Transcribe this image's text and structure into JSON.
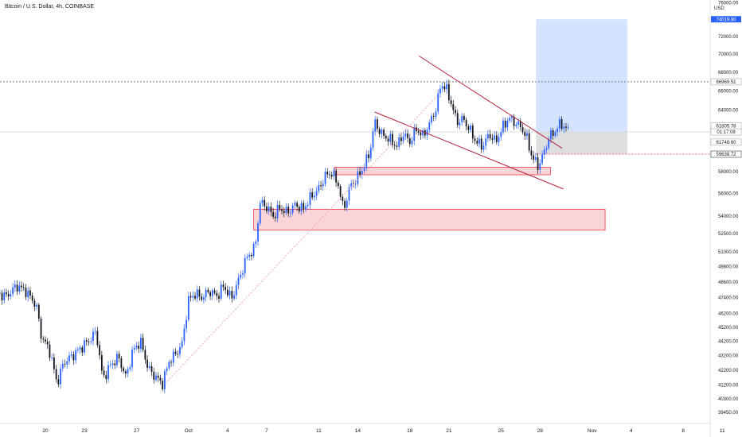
{
  "chart_title": "Bitcoin / U.S. Dollar, 4h, COINBASE",
  "axis_currency": "USD",
  "chart_data": {
    "type": "candlestick",
    "title": "Bitcoin / U.S. Dollar, 4h, COINBASE",
    "ylabel": "USD",
    "scale": "log",
    "ylim": [
      39200,
      76000
    ],
    "y_ticks": [
      {
        "value": 76000,
        "label": "76000.00"
      },
      {
        "value": 72000,
        "label": "72000.00"
      },
      {
        "value": 70000,
        "label": "70000.00"
      },
      {
        "value": 68000,
        "label": "68000.00"
      },
      {
        "value": 66000,
        "label": "66000.00"
      },
      {
        "value": 64000,
        "label": "64000.00"
      },
      {
        "value": 58000,
        "label": "58000.00"
      },
      {
        "value": 56000,
        "label": "56000.00"
      },
      {
        "value": 54000,
        "label": "54000.00"
      },
      {
        "value": 52500,
        "label": "52500.00"
      },
      {
        "value": 51000,
        "label": "51000.00"
      },
      {
        "value": 49800,
        "label": "49800.00"
      },
      {
        "value": 48600,
        "label": "48600.00"
      },
      {
        "value": 47400,
        "label": "47400.00"
      },
      {
        "value": 46200,
        "label": "46200.00"
      },
      {
        "value": 45200,
        "label": "45200.00"
      },
      {
        "value": 44200,
        "label": "44200.00"
      },
      {
        "value": 43200,
        "label": "43200.00"
      },
      {
        "value": 42200,
        "label": "42200.00"
      },
      {
        "value": 41200,
        "label": "41200.00"
      },
      {
        "value": 40300,
        "label": "40300.00"
      },
      {
        "value": 39450,
        "label": "39450.00"
      }
    ],
    "x_ticks": [
      {
        "day": 20,
        "label": "20"
      },
      {
        "day": 23,
        "label": "23"
      },
      {
        "day": 27,
        "label": "27"
      },
      {
        "day": 31,
        "label": "Oct"
      },
      {
        "day": 34,
        "label": "4"
      },
      {
        "day": 37,
        "label": "7"
      },
      {
        "day": 41,
        "label": "11"
      },
      {
        "day": 44,
        "label": "14"
      },
      {
        "day": 48,
        "label": "18"
      },
      {
        "day": 51,
        "label": "21"
      },
      {
        "day": 55,
        "label": "25"
      },
      {
        "day": 58,
        "label": "28"
      },
      {
        "day": 62,
        "label": "Nov"
      },
      {
        "day": 65,
        "label": "4"
      },
      {
        "day": 69,
        "label": "8"
      },
      {
        "day": 72,
        "label": "11"
      }
    ],
    "colors": {
      "up": "#2962ff",
      "down": "#131722"
    },
    "anchors": [
      {
        "day": 16,
        "close": 47800
      },
      {
        "day": 17,
        "close": 47500
      },
      {
        "day": 17.8,
        "close": 48300
      },
      {
        "day": 18.5,
        "close": 47900
      },
      {
        "day": 19.3,
        "close": 46800
      },
      {
        "day": 19.7,
        "close": 44500
      },
      {
        "day": 20.3,
        "close": 43600
      },
      {
        "day": 20.9,
        "close": 41300
      },
      {
        "day": 21.4,
        "close": 42700
      },
      {
        "day": 22.1,
        "close": 43200
      },
      {
        "day": 22.7,
        "close": 43700
      },
      {
        "day": 23.4,
        "close": 44300
      },
      {
        "day": 23.9,
        "close": 44900
      },
      {
        "day": 24.4,
        "close": 41600
      },
      {
        "day": 25.0,
        "close": 42500
      },
      {
        "day": 25.6,
        "close": 43100
      },
      {
        "day": 26.2,
        "close": 41700
      },
      {
        "day": 26.7,
        "close": 43500
      },
      {
        "day": 27.3,
        "close": 44200
      },
      {
        "day": 27.9,
        "close": 42300
      },
      {
        "day": 28.5,
        "close": 41700
      },
      {
        "day": 29.0,
        "close": 41300
      },
      {
        "day": 29.5,
        "close": 42800
      },
      {
        "day": 30.0,
        "close": 43300
      },
      {
        "day": 30.5,
        "close": 44000
      },
      {
        "day": 31.0,
        "close": 47200
      },
      {
        "day": 31.5,
        "close": 47700
      },
      {
        "day": 32.0,
        "close": 47400
      },
      {
        "day": 32.6,
        "close": 47900
      },
      {
        "day": 33.2,
        "close": 47500
      },
      {
        "day": 33.7,
        "close": 48300
      },
      {
        "day": 34.3,
        "close": 47300
      },
      {
        "day": 34.9,
        "close": 48900
      },
      {
        "day": 35.5,
        "close": 50600
      },
      {
        "day": 36.1,
        "close": 51300
      },
      {
        "day": 36.5,
        "close": 55200
      },
      {
        "day": 37.0,
        "close": 54800
      },
      {
        "day": 37.5,
        "close": 54000
      },
      {
        "day": 38.0,
        "close": 54700
      },
      {
        "day": 38.6,
        "close": 54300
      },
      {
        "day": 39.2,
        "close": 55000
      },
      {
        "day": 39.8,
        "close": 54600
      },
      {
        "day": 40.4,
        "close": 55700
      },
      {
        "day": 41.0,
        "close": 56400
      },
      {
        "day": 41.5,
        "close": 57600
      },
      {
        "day": 42.0,
        "close": 57900
      },
      {
        "day": 42.5,
        "close": 56800
      },
      {
        "day": 42.9,
        "close": 54500
      },
      {
        "day": 43.4,
        "close": 56600
      },
      {
        "day": 43.9,
        "close": 57300
      },
      {
        "day": 44.4,
        "close": 58300
      },
      {
        "day": 44.9,
        "close": 59700
      },
      {
        "day": 45.3,
        "close": 62800
      },
      {
        "day": 45.8,
        "close": 61600
      },
      {
        "day": 46.4,
        "close": 61100
      },
      {
        "day": 47.0,
        "close": 60400
      },
      {
        "day": 47.5,
        "close": 61600
      },
      {
        "day": 48.0,
        "close": 60800
      },
      {
        "day": 48.5,
        "close": 62100
      },
      {
        "day": 49.0,
        "close": 61400
      },
      {
        "day": 49.5,
        "close": 62600
      },
      {
        "day": 50.0,
        "close": 64100
      },
      {
        "day": 50.4,
        "close": 66800
      },
      {
        "day": 50.8,
        "close": 66200
      },
      {
        "day": 51.2,
        "close": 64600
      },
      {
        "day": 51.6,
        "close": 62800
      },
      {
        "day": 52.1,
        "close": 63100
      },
      {
        "day": 52.6,
        "close": 62000
      },
      {
        "day": 53.1,
        "close": 60800
      },
      {
        "day": 53.6,
        "close": 60400
      },
      {
        "day": 54.1,
        "close": 61600
      },
      {
        "day": 54.6,
        "close": 60800
      },
      {
        "day": 55.1,
        "close": 62200
      },
      {
        "day": 55.6,
        "close": 63200
      },
      {
        "day": 56.1,
        "close": 62700
      },
      {
        "day": 56.6,
        "close": 62200
      },
      {
        "day": 57.0,
        "close": 61100
      },
      {
        "day": 57.4,
        "close": 59300
      },
      {
        "day": 57.9,
        "close": 58500
      },
      {
        "day": 58.3,
        "close": 59800
      },
      {
        "day": 58.7,
        "close": 61300
      },
      {
        "day": 59.1,
        "close": 61800
      },
      {
        "day": 59.6,
        "close": 62700
      },
      {
        "day": 60.0,
        "close": 62100
      },
      {
        "day": 60.3,
        "close": 61805
      }
    ],
    "price_tags": [
      {
        "label": "74019.80",
        "value": 74019.8,
        "bg": "#2962ff",
        "fg": "#ffffff"
      },
      {
        "label": "66969.51",
        "value": 66969.51,
        "bg": "#ffffff",
        "fg": "#131722",
        "border": "#9598a1"
      },
      {
        "label": "61805.78",
        "value": 62400,
        "bg": "#ffffff",
        "fg": "#131722",
        "border": "#9598a1"
      },
      {
        "label": "01:17:08",
        "value": 61800,
        "bg": "#ffffff",
        "fg": "#131722",
        "border": "#9598a1"
      },
      {
        "label": "61748.60",
        "value": 60800,
        "bg": "#ffffff",
        "fg": "#131722",
        "border": "#9598a1"
      },
      {
        "label": "59638.72",
        "value": 59638.72,
        "bg": "#ffffff",
        "fg": "#131722",
        "border": "#131722"
      }
    ],
    "horizontal_lines": [
      {
        "value": 66969.51,
        "style": "dotted",
        "color": "#5d606b"
      },
      {
        "value": 61805.78,
        "style": "solid",
        "color": "#d1d4dc"
      },
      {
        "value": 59638.72,
        "style": "dotted",
        "color": "#f23645"
      }
    ],
    "zones": [
      {
        "name": "resistance-zone-upper",
        "from_day": 42.2,
        "to_day": 58.8,
        "low": 57700,
        "high": 58400
      },
      {
        "name": "support-zone-lower",
        "from_day": 36.0,
        "to_day": 63.0,
        "low": 52800,
        "high": 54600
      }
    ],
    "trendlines": [
      {
        "name": "channel-upper",
        "from": {
          "day": 48.7,
          "value": 69800
        },
        "to": {
          "day": 59.7,
          "value": 60200
        },
        "color": "#b2223a"
      },
      {
        "name": "channel-lower",
        "from": {
          "day": 45.3,
          "value": 63800
        },
        "to": {
          "day": 59.8,
          "value": 56400
        },
        "color": "#b2223a"
      },
      {
        "name": "trend-support",
        "from": {
          "day": 29.2,
          "value": 41300
        },
        "to": {
          "day": 50.2,
          "value": 65600
        },
        "color": "#f7a3ad",
        "style": "dashed"
      }
    ],
    "position": {
      "from_day": 57.7,
      "to_day": 64.7,
      "entry": 61805.78,
      "target": 74019.8,
      "stop": 59638.72,
      "profit_color": "#cfe0ff",
      "loss_color": "#d9dadd"
    }
  }
}
